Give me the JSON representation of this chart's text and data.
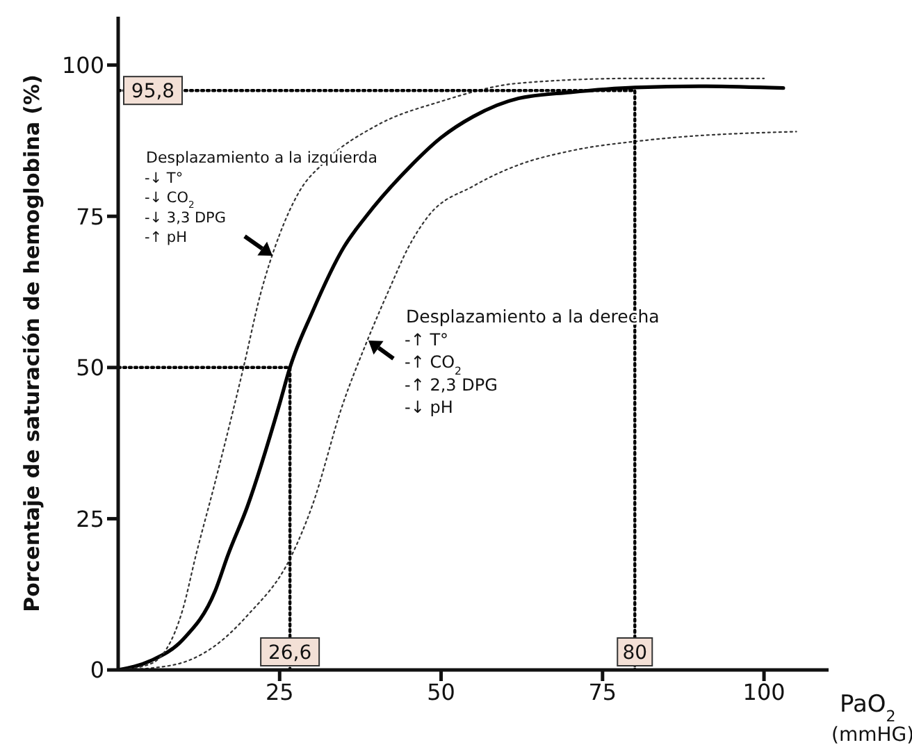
{
  "chart_data": {
    "type": "line",
    "xlabel": "PaO$_{2}$\n(mmHG)",
    "ylabel": "Porcentaje de saturación de hemoglobina (%)",
    "xlim": [
      0,
      110
    ],
    "ylim": [
      0,
      108
    ],
    "xticks": [
      25,
      50,
      75,
      100
    ],
    "yticks": [
      0,
      25,
      50,
      75,
      100
    ],
    "marker": "none",
    "series": [
      {
        "color": "#000000",
        "line_style": "solid",
        "x": [
          0,
          5,
          10,
          15,
          17,
          20,
          25,
          26.6,
          30,
          35,
          38.4,
          45,
          50,
          55,
          62,
          70,
          80,
          90,
          103
        ],
        "values": [
          0,
          1.5,
          5,
          13,
          19,
          27,
          44,
          50,
          59,
          70,
          75,
          83,
          88,
          91.5,
          94.5,
          95.5,
          96.3,
          96.5,
          96.2
        ]
      },
      {
        "color": "#333333",
        "line_style": "dotted",
        "x": [
          0,
          5,
          10,
          12,
          15,
          19.4,
          22,
          25,
          28,
          32,
          40,
          50,
          62,
          80,
          100
        ],
        "values": [
          0,
          1,
          10,
          18.8,
          31,
          50,
          62,
          72,
          79,
          84,
          90,
          94,
          97,
          97.8,
          97.8
        ]
      },
      {
        "color": "#333333",
        "line_style": "dotted",
        "x": [
          0,
          5,
          11,
          15,
          20,
          26.8,
          30,
          34.8,
          38.4,
          42,
          45,
          48,
          55,
          62,
          70,
          82,
          105
        ],
        "values": [
          0,
          0.3,
          1.6,
          4,
          9,
          18.8,
          27,
          44,
          54,
          63,
          70,
          75,
          80,
          83.5,
          85.8,
          87.6,
          89
        ]
      },
      {
        "color": "#000000",
        "line_style": "dotted",
        "x": [
          0,
          26.6,
          26.6
        ],
        "values": [
          50,
          50,
          0
        ]
      },
      {
        "color": "#000000",
        "line_style": "dotted",
        "x": [
          0,
          80,
          80
        ],
        "values": [
          95.8,
          95.8,
          0
        ]
      }
    ],
    "annotations": [
      {
        "text": "95,8",
        "x": 0,
        "y": 95.8
      },
      {
        "text": "26,6",
        "x": 26.6,
        "y": 0
      },
      {
        "text": "80",
        "x": 80,
        "y": 0
      },
      "Desplazamiento a la izquierda\n-↓ T°\n-↓ CO$_{2}$\n-↓ 3,3 DPG\n-↑ pH",
      "Desplazamiento a la derecha\n-↑ T°\n-↑ CO$_{2}$\n-↑ 2,3 DPG\n-↓ pH"
    ]
  }
}
